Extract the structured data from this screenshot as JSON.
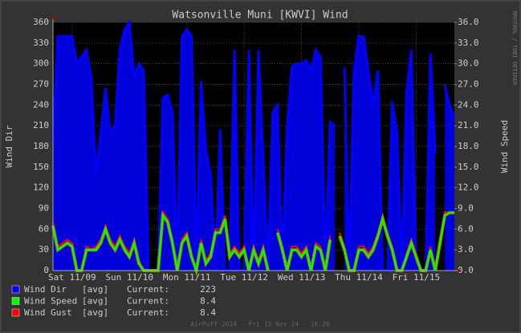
{
  "chart_data": {
    "type": "line",
    "title": "Watsonville Muni [KWVI] Wind",
    "ylabel": "Wind Dir",
    "y2label": "Wind Speed",
    "side_text": "RRDTOOL / TOBI OETIKER",
    "footer": "AirPuff 2024 - Fri 15 Nov 24 - 16:20",
    "xlim": [
      0,
      168
    ],
    "xticks": [
      {
        "value": 8,
        "label": "Sat 11/09"
      },
      {
        "value": 32,
        "label": "Sun 11/10"
      },
      {
        "value": 56,
        "label": "Mon 11/11"
      },
      {
        "value": 80,
        "label": "Tue 11/12"
      },
      {
        "value": 104,
        "label": "Wed 11/13"
      },
      {
        "value": 128,
        "label": "Thu 11/14"
      },
      {
        "value": 152,
        "label": "Fri 11/15"
      }
    ],
    "ylim": [
      0,
      360
    ],
    "yticks": [
      0,
      30,
      60,
      90,
      120,
      150,
      180,
      210,
      240,
      270,
      300,
      330,
      360
    ],
    "y2lim": [
      0,
      36
    ],
    "y2ticks": [
      {
        "value": 0,
        "label": "0.0"
      },
      {
        "value": 3,
        "label": "3.0"
      },
      {
        "value": 6,
        "label": "6.0"
      },
      {
        "value": 9,
        "label": "9.0"
      },
      {
        "value": 12,
        "label": "12.0"
      },
      {
        "value": 15,
        "label": "15.0"
      },
      {
        "value": 18,
        "label": "18.0"
      },
      {
        "value": 21,
        "label": "21.0"
      },
      {
        "value": 24,
        "label": "24.0"
      },
      {
        "value": 27,
        "label": "27.0"
      },
      {
        "value": 30,
        "label": "30.0"
      },
      {
        "value": 33,
        "label": "33.0"
      },
      {
        "value": 36,
        "label": "36.0"
      }
    ],
    "grid": true,
    "x": [
      0,
      2,
      4,
      6,
      8,
      10,
      12,
      14,
      16,
      18,
      20,
      22,
      24,
      26,
      28,
      30,
      32,
      34,
      36,
      38,
      40,
      42,
      44,
      46,
      48,
      50,
      52,
      54,
      56,
      58,
      60,
      62,
      64,
      66,
      68,
      70,
      72,
      74,
      76,
      78,
      80,
      82,
      84,
      86,
      88,
      90,
      92,
      94,
      96,
      98,
      100,
      102,
      104,
      106,
      108,
      110,
      112,
      114,
      116,
      118,
      120,
      122,
      124,
      126,
      128,
      130,
      132,
      134,
      136,
      138,
      140,
      142,
      144,
      146,
      148,
      150,
      152,
      154,
      156,
      158,
      160,
      162,
      164,
      166,
      168
    ],
    "series": [
      {
        "name": "Wind Dir",
        "stat": "[avg]",
        "current_label": "Current:",
        "current": 223,
        "color": "#0000ff",
        "style": "area",
        "values": [
          190,
          340,
          340,
          340,
          340,
          300,
          310,
          320,
          280,
          140,
          200,
          265,
          200,
          210,
          320,
          350,
          360,
          280,
          300,
          290,
          0,
          0,
          0,
          250,
          255,
          230,
          0,
          340,
          350,
          340,
          0,
          275,
          175,
          140,
          0,
          205,
          0,
          0,
          320,
          0,
          0,
          320,
          0,
          320,
          160,
          0,
          230,
          240,
          0,
          210,
          295,
          300,
          300,
          305,
          290,
          320,
          310,
          0,
          215,
          210,
          null,
          295,
          0,
          290,
          340,
          340,
          290,
          240,
          290,
          0,
          0,
          245,
          200,
          0,
          260,
          320,
          0,
          0,
          0,
          315,
          170,
          null,
          270,
          240,
          223
        ]
      },
      {
        "name": "Wind Speed",
        "stat": "[avg]",
        "current_label": "Current:",
        "current": 8.4,
        "color": "#00ff00",
        "style": "line",
        "axis": "y2",
        "values": [
          6.5,
          3,
          3.5,
          4,
          3.5,
          0,
          0,
          3,
          3,
          3,
          4,
          6,
          4,
          3,
          4.5,
          3,
          2,
          4,
          1,
          0,
          0,
          0,
          0,
          8,
          7,
          4,
          0,
          4,
          5,
          2,
          0,
          4,
          1,
          2,
          5.5,
          5.5,
          7.5,
          2,
          3,
          2,
          3,
          0,
          3,
          1,
          3,
          0,
          null,
          5.5,
          3,
          0,
          3,
          3,
          2,
          3,
          0,
          3.5,
          3,
          0,
          4.5,
          null,
          5,
          3,
          0,
          0,
          3,
          3,
          2,
          3,
          5,
          7.5,
          5,
          3,
          0,
          0,
          2,
          4,
          2,
          0,
          0,
          3,
          0,
          4,
          8,
          8.4,
          8.4
        ]
      },
      {
        "name": "Wind Gust",
        "stat": "[avg]",
        "current_label": "Current:",
        "current": 8.4,
        "color": "#ff0000",
        "style": "line",
        "axis": "y2",
        "values": [
          7,
          3.5,
          4,
          4.5,
          4,
          0,
          0,
          3.5,
          3,
          3.5,
          4.5,
          6.5,
          4.5,
          3.5,
          5,
          3.5,
          2.5,
          4.5,
          1.5,
          0,
          0,
          0,
          0,
          8.5,
          7.5,
          4.5,
          0,
          4.5,
          5.5,
          2.5,
          0,
          4.5,
          1.5,
          2.5,
          6,
          6,
          8,
          2.5,
          3.5,
          2.5,
          3.5,
          0,
          3.5,
          1.5,
          3.5,
          0,
          null,
          6,
          3.5,
          0,
          3.5,
          3.5,
          2.5,
          3.5,
          0,
          4,
          3.5,
          0,
          5,
          null,
          5.5,
          3.5,
          0,
          0,
          3.5,
          3.5,
          2.5,
          3.5,
          5.5,
          8,
          5.5,
          3.5,
          0,
          0,
          2.5,
          4.5,
          2.5,
          0,
          0,
          3.5,
          0,
          4.5,
          8.5,
          8.4,
          8.4
        ]
      }
    ]
  }
}
